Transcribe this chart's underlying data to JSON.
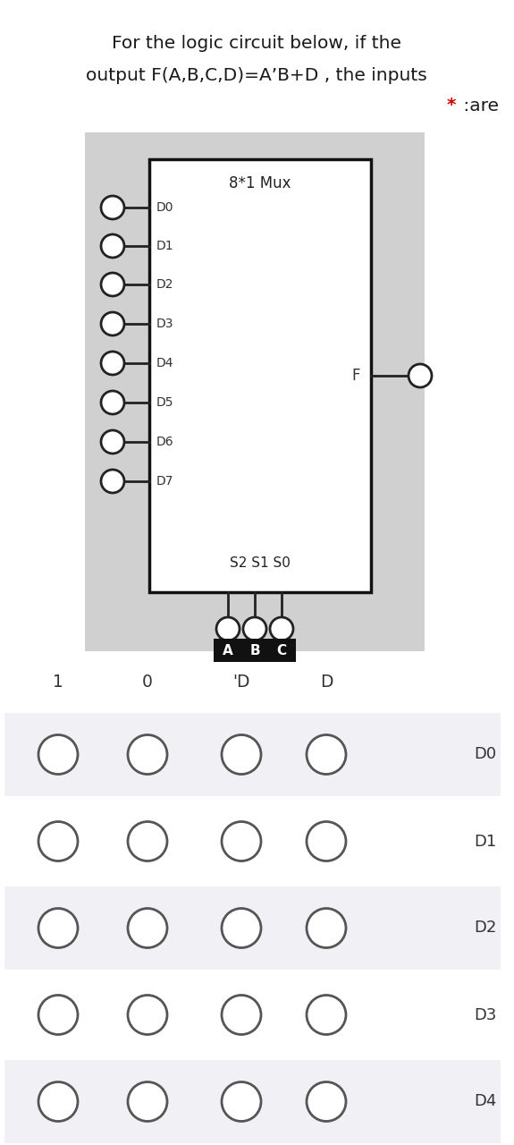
{
  "title_line1": "For the logic circuit below, if the",
  "title_line2": "output F(A,B,C,D)=A’B+D , the inputs",
  "title_line3_star": "*",
  "title_line3_text": " :are",
  "bg_color": "#ffffff",
  "mux_bg": "#d0d0d0",
  "mux_box_bg": "#ffffff",
  "mux_title": "8*1 Mux",
  "data_inputs": [
    "D0",
    "D1",
    "D2",
    "D3",
    "D4",
    "D5",
    "D6",
    "D7"
  ],
  "select_abc": [
    "A",
    "B",
    "C"
  ],
  "output_label": "F",
  "col_headers": [
    "1",
    "0",
    "'D",
    "D"
  ],
  "row_labels": [
    "D0",
    "D1",
    "D2",
    "D3",
    "D4"
  ],
  "circle_ec": "#555555",
  "row_bg": "#f0f0f5",
  "row_bg_alt": "#ffffff"
}
